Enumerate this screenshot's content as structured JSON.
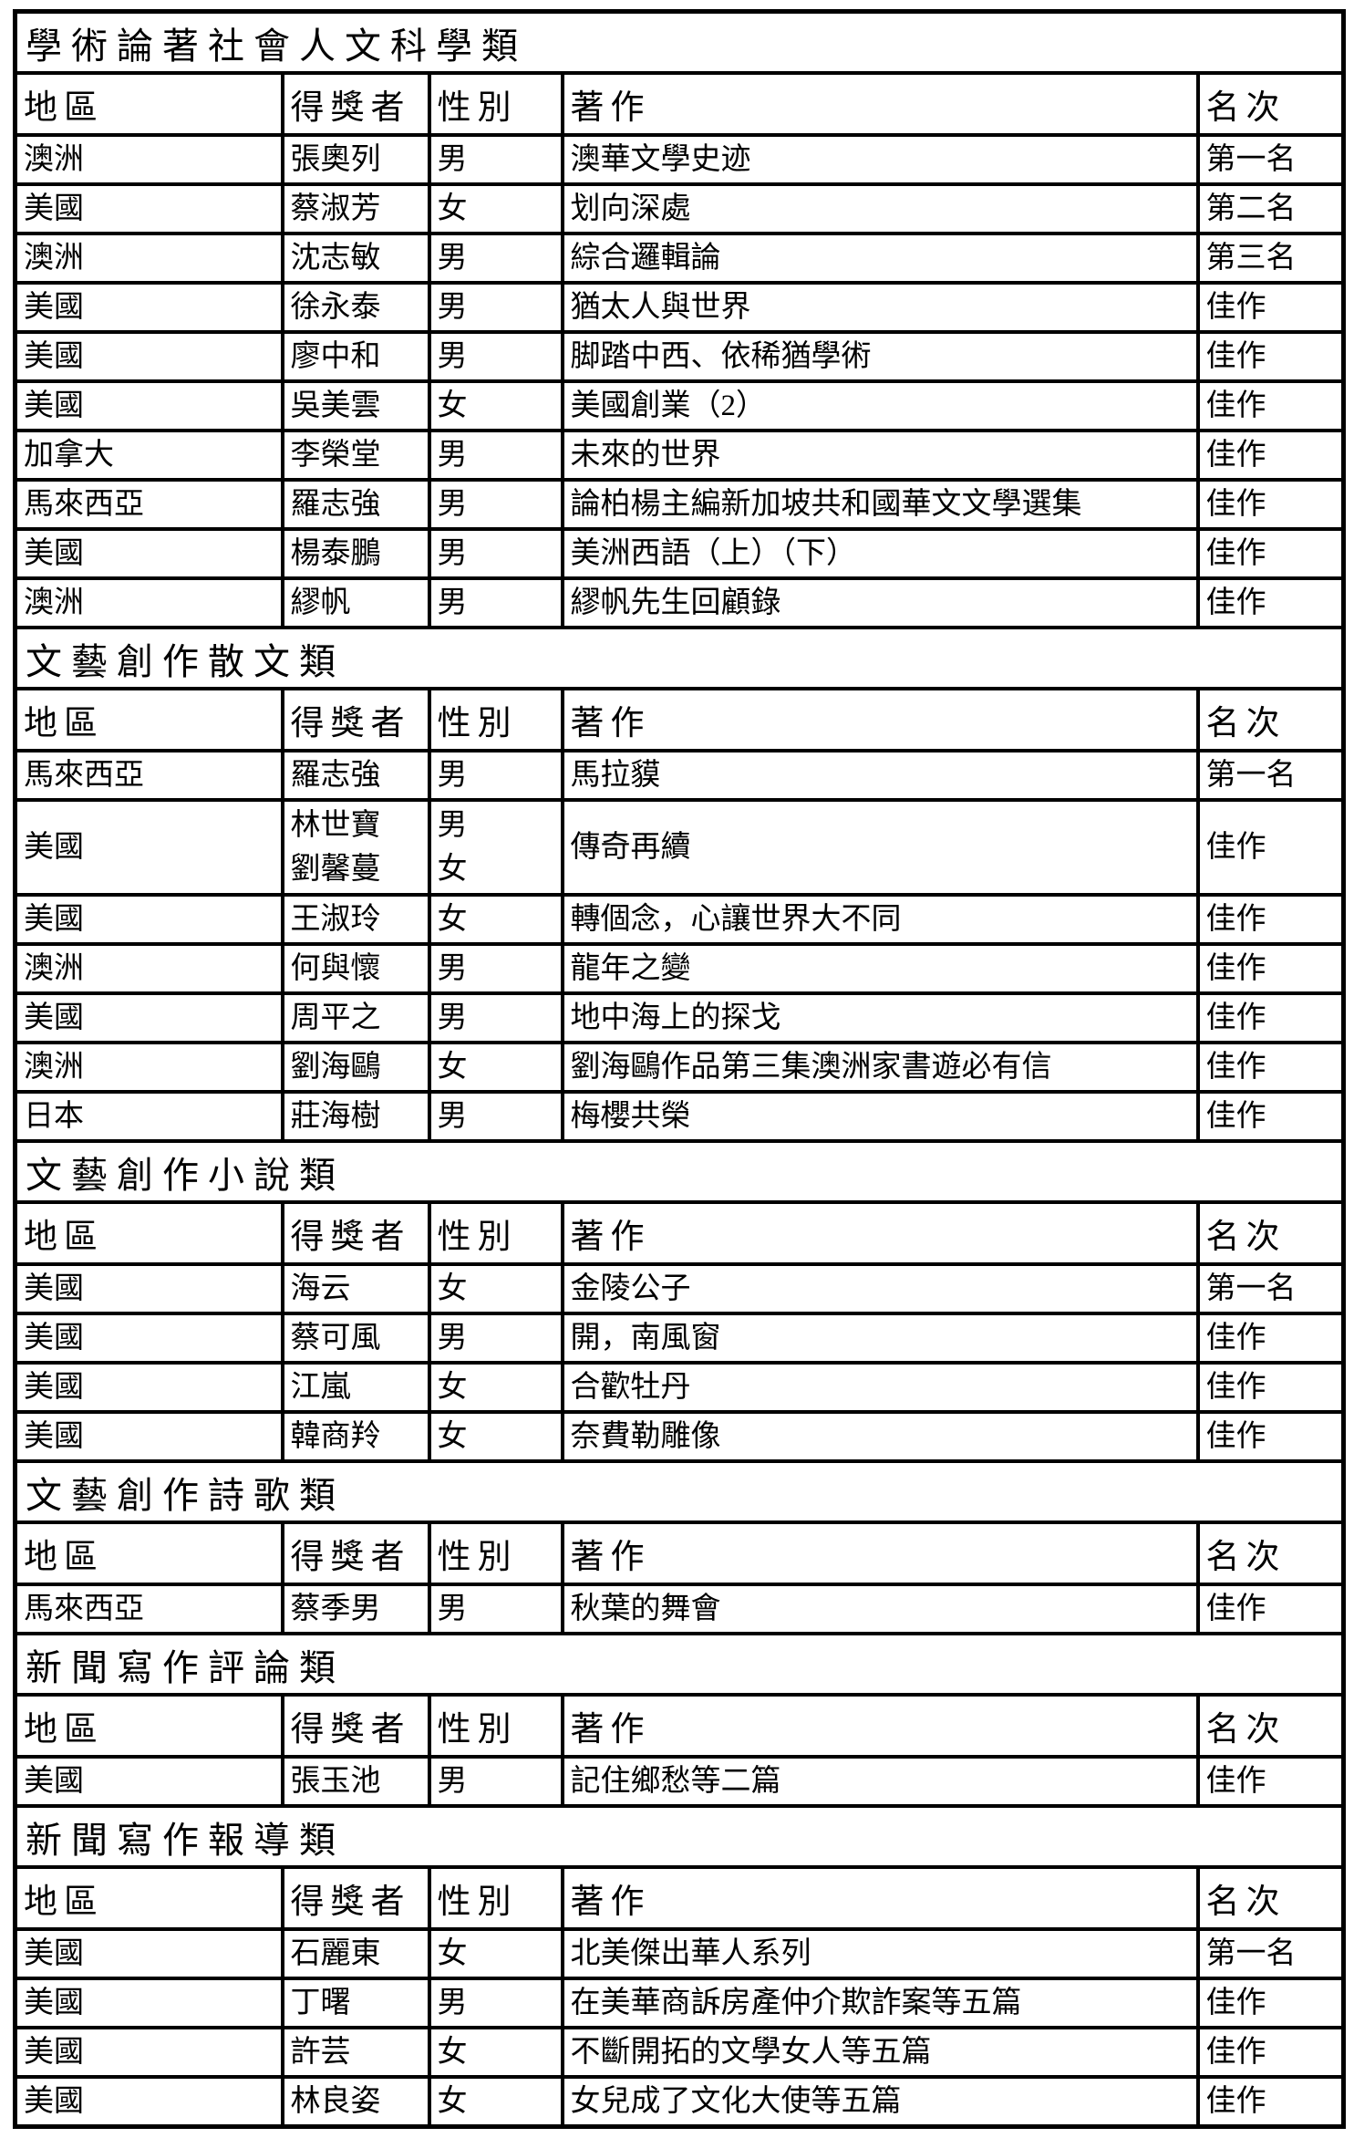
{
  "colors": {
    "background": "#ffffff",
    "border": "#000000",
    "text": "#000000"
  },
  "column_headers": [
    "地區",
    "得獎者",
    "性別",
    "著作",
    "名次"
  ],
  "sections": [
    {
      "title": "學術論著社會人文科學類",
      "rows": [
        [
          "澳洲",
          "張奧列",
          "男",
          "澳華文學史迹",
          "第一名"
        ],
        [
          "美國",
          "蔡淑芳",
          "女",
          "划向深處",
          "第二名"
        ],
        [
          "澳洲",
          "沈志敏",
          "男",
          "綜合邏輯論",
          "第三名"
        ],
        [
          "美國",
          "徐永泰",
          "男",
          "猶太人與世界",
          "佳作"
        ],
        [
          "美國",
          "廖中和",
          "男",
          "脚踏中西、依稀猶學術",
          "佳作"
        ],
        [
          "美國",
          "吳美雲",
          "女",
          "美國創業（2）",
          "佳作"
        ],
        [
          "加拿大",
          "李榮堂",
          "男",
          "未來的世界",
          "佳作"
        ],
        [
          "馬來西亞",
          "羅志強",
          "男",
          "論柏楊主編新加坡共和國華文文學選集",
          "佳作"
        ],
        [
          "美國",
          "楊泰鵬",
          "男",
          "美洲西語（上）（下）",
          "佳作"
        ],
        [
          "澳洲",
          "繆帆",
          "男",
          "繆帆先生回顧錄",
          "佳作"
        ]
      ]
    },
    {
      "title": "文藝創作散文類",
      "rows": [
        [
          "馬來西亞",
          "羅志強",
          "男",
          "馬拉貘",
          "第一名"
        ],
        [
          "美國",
          "林世寶\n劉馨蔓",
          "男\n女",
          "傳奇再續",
          "佳作"
        ],
        [
          "美國",
          "王淑玲",
          "女",
          "轉個念，心讓世界大不同",
          "佳作"
        ],
        [
          "澳洲",
          "何與懷",
          "男",
          "龍年之變",
          "佳作"
        ],
        [
          "美國",
          "周平之",
          "男",
          "地中海上的探戈",
          "佳作"
        ],
        [
          "澳洲",
          "劉海鷗",
          "女",
          "劉海鷗作品第三集澳洲家書遊必有信",
          "佳作"
        ],
        [
          "日本",
          "莊海樹",
          "男",
          "梅櫻共榮",
          "佳作"
        ]
      ]
    },
    {
      "title": "文藝創作小說類",
      "rows": [
        [
          "美國",
          "海云",
          "女",
          "金陵公子",
          "第一名"
        ],
        [
          "美國",
          "蔡可風",
          "男",
          "開，南風窗",
          "佳作"
        ],
        [
          "美國",
          "江嵐",
          "女",
          "合歡牡丹",
          "佳作"
        ],
        [
          "美國",
          "韓商羚",
          "女",
          "奈費勒雕像",
          "佳作"
        ]
      ]
    },
    {
      "title": "文藝創作詩歌類",
      "rows": [
        [
          "馬來西亞",
          "蔡季男",
          "男",
          "秋葉的舞會",
          "佳作"
        ]
      ]
    },
    {
      "title": "新聞寫作評論類",
      "rows": [
        [
          "美國",
          "張玉池",
          "男",
          "記住鄉愁等二篇",
          "佳作"
        ]
      ]
    },
    {
      "title": "新聞寫作報導類",
      "rows": [
        [
          "美國",
          "石麗東",
          "女",
          "北美傑出華人系列",
          "第一名"
        ],
        [
          "美國",
          "丁曙",
          "男",
          "在美華商訴房產仲介欺詐案等五篇",
          "佳作"
        ],
        [
          "美國",
          "許芸",
          "女",
          "不斷開拓的文學女人等五篇",
          "佳作"
        ],
        [
          "美國",
          "林良姿",
          "女",
          "女兒成了文化大使等五篇",
          "佳作"
        ]
      ]
    }
  ]
}
